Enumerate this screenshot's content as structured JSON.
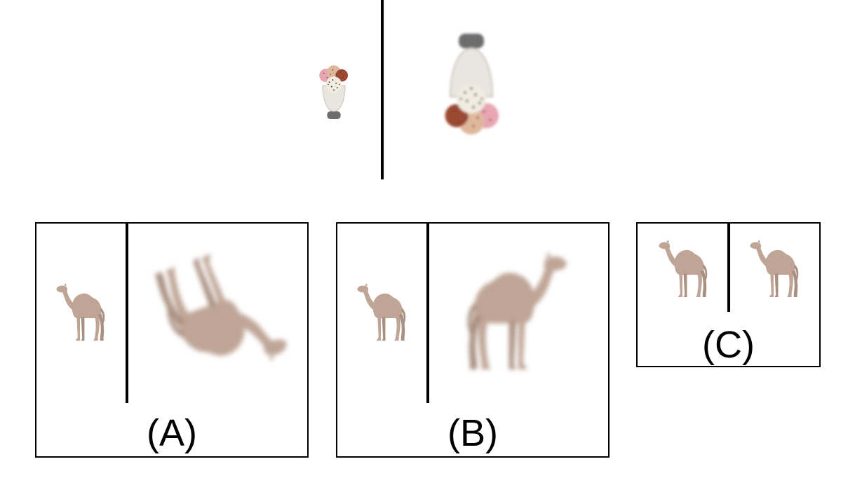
{
  "colors": {
    "camel": "#bfa596",
    "camel_shade": "#a98f80",
    "line": "#000000",
    "cream": "#f1ece0",
    "cup_gray": "#6d6d6d",
    "pink": "#e7a6b2",
    "peach": "#dfb89c",
    "choco": "#9c4a31"
  },
  "icons": {
    "top_left": "ice-cream-cup-icon",
    "top_right": "ice-cream-cup-large-icon",
    "camel": "camel-icon"
  },
  "options": [
    {
      "id": "A",
      "label": "(A)"
    },
    {
      "id": "B",
      "label": "(B)"
    },
    {
      "id": "C",
      "label": "(C)"
    }
  ]
}
